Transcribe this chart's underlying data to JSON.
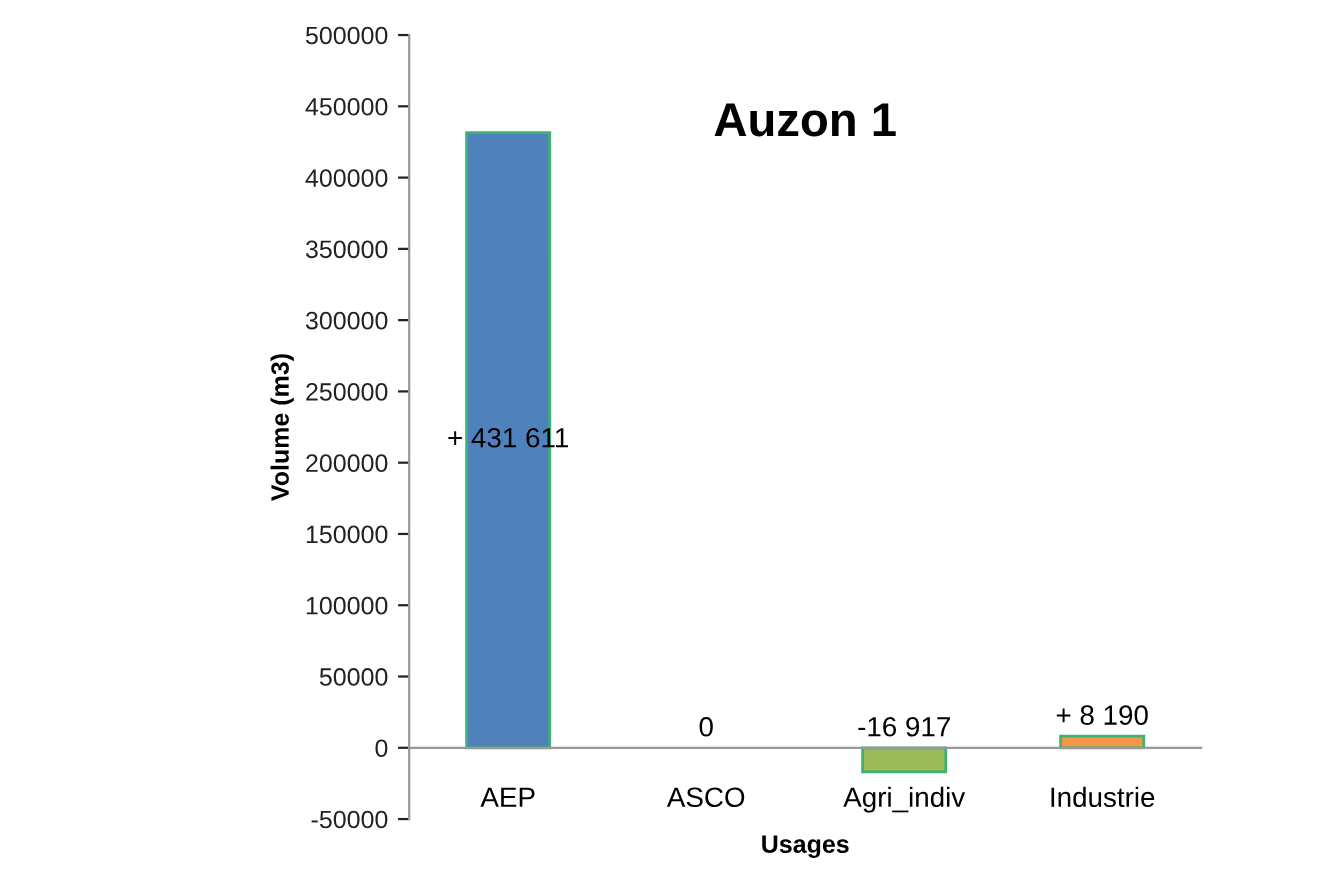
{
  "chart_data": {
    "type": "bar",
    "title": "Auzon 1",
    "xlabel": "Usages",
    "ylabel": "Volume (m3)",
    "categories": [
      "AEP",
      "ASCO",
      "Agri_indiv",
      "Industrie"
    ],
    "values": [
      431611,
      0,
      -16917,
      8190
    ],
    "colors": [
      "#4f81bd",
      "#4f81bd",
      "#9bbb59",
      "#f79646"
    ],
    "value_labels": [
      "+ 431 611",
      "0",
      "-16 917",
      "+ 8 190"
    ],
    "ylim": [
      -50000,
      500000
    ],
    "yticks": [
      -50000,
      0,
      50000,
      100000,
      150000,
      200000,
      250000,
      300000,
      350000,
      400000,
      450000,
      500000
    ],
    "grid": false,
    "legend": false
  }
}
